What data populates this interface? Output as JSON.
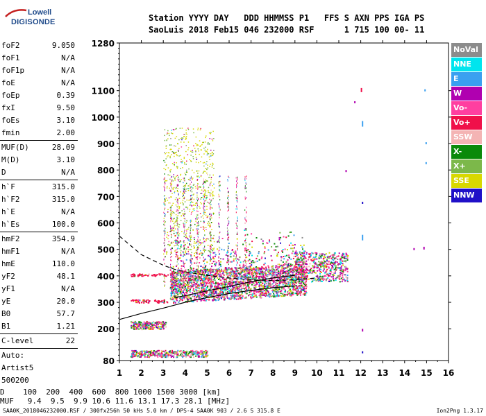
{
  "logo": {
    "top": "Lowell",
    "bottom": "DIGISONDE"
  },
  "header": {
    "line1": "Station YYYY DAY   DDD HHMMSS P1   FFS S AXN PPS IGA PS",
    "line2": "SaoLuis 2018 Feb15 046 232000 RSF      1 715 100 00- 11"
  },
  "params": [
    {
      "label": "foF2",
      "value": "9.050"
    },
    {
      "label": "foF1",
      "value": "N/A"
    },
    {
      "label": "foF1p",
      "value": "N/A"
    },
    {
      "label": "foE",
      "value": "N/A"
    },
    {
      "label": "foEp",
      "value": "0.39"
    },
    {
      "label": "fxI",
      "value": "9.50"
    },
    {
      "label": "foEs",
      "value": "3.10"
    },
    {
      "label": "fmin",
      "value": "2.00"
    },
    {
      "sep": true
    },
    {
      "label": "MUF(D)",
      "value": "28.09"
    },
    {
      "label": "M(D)",
      "value": "3.10"
    },
    {
      "label": "D",
      "value": "N/A"
    },
    {
      "sep": true
    },
    {
      "label": "h`F",
      "value": "315.0"
    },
    {
      "label": "h`F2",
      "value": "315.0"
    },
    {
      "label": "h`E",
      "value": "N/A"
    },
    {
      "label": "h`Es",
      "value": "100.0"
    },
    {
      "sep": true
    },
    {
      "label": "hmF2",
      "value": "354.9"
    },
    {
      "label": "hmF1",
      "value": "N/A"
    },
    {
      "label": "hmE",
      "value": "110.0"
    },
    {
      "label": "yF2",
      "value": "48.1"
    },
    {
      "label": "yF1",
      "value": "N/A"
    },
    {
      "label": "yE",
      "value": "20.0"
    },
    {
      "label": "B0",
      "value": "57.7"
    },
    {
      "label": "B1",
      "value": "1.21"
    },
    {
      "sep": true
    },
    {
      "label": "C-level",
      "value": "22"
    },
    {
      "sep": true
    },
    {
      "label": "Auto:",
      "value": ""
    },
    {
      "label": "Artist5",
      "value": ""
    },
    {
      "label": "500200",
      "value": ""
    }
  ],
  "legend": [
    {
      "label": "NoVal",
      "color": "#8c8c8c"
    },
    {
      "label": "NNE",
      "color": "#00e5ee"
    },
    {
      "label": "E",
      "color": "#3aa0f0"
    },
    {
      "label": "W",
      "color": "#b000b0"
    },
    {
      "label": "Vo-",
      "color": "#ff3fa0"
    },
    {
      "label": "Vo+",
      "color": "#f0104a"
    },
    {
      "label": "SSW",
      "color": "#f4b4b4"
    },
    {
      "label": "X-",
      "color": "#0a8a0a"
    },
    {
      "label": "X+",
      "color": "#7cb84a"
    },
    {
      "label": "SSE",
      "color": "#d8d800"
    },
    {
      "label": "NNW",
      "color": "#2010c8"
    }
  ],
  "chart_data": {
    "type": "scatter",
    "x_ticks": [
      "1",
      "2",
      "3",
      "4",
      "5",
      "6",
      "7",
      "8",
      "9",
      "10",
      "11",
      "12",
      "13",
      "14",
      "15",
      "16"
    ],
    "y_ticks": [
      "80",
      "200",
      "300",
      "400",
      "500",
      "600",
      "700",
      "800",
      "900",
      "1000",
      "1100",
      "1280"
    ],
    "xlim": [
      1,
      16
    ],
    "ylim": [
      80,
      1280
    ],
    "y_tick_values": [
      80,
      200,
      300,
      400,
      500,
      600,
      700,
      800,
      900,
      1000,
      1100,
      1280
    ],
    "trace_solid": {
      "x": [
        1,
        2,
        3,
        4,
        5,
        6,
        7,
        8,
        9,
        9.1
      ],
      "y": [
        235,
        258,
        278,
        300,
        318,
        333,
        345,
        355,
        362,
        363
      ]
    },
    "trace_lower": {
      "x": [
        3.5,
        4,
        5,
        6,
        7,
        8,
        8.8,
        9.0
      ],
      "y": [
        318,
        325,
        343,
        360,
        378,
        392,
        400,
        402
      ]
    },
    "trace_dashed": {
      "x": [
        1,
        2,
        3,
        3.5,
        4,
        5,
        6,
        7,
        8,
        9,
        10
      ],
      "y": [
        550,
        480,
        440,
        425,
        415,
        402,
        392,
        385,
        382,
        385,
        392
      ]
    }
  },
  "bottom": {
    "d_line": "D    100  200  400  600  800 1000 1500 3000 [km]",
    "muf_line": "MUF   9.4  9.5  9.9 10.6 11.6 13.1 17.3 28.1 [MHz]"
  },
  "footer": {
    "left": "SAA0K_2018046232000.RSF / 300fx256h 50 kHs 5.0 km / DPS-4 SAA0K 903 / 2.6 S 315.8 E",
    "right": "Ion2Png 1.3.17"
  }
}
